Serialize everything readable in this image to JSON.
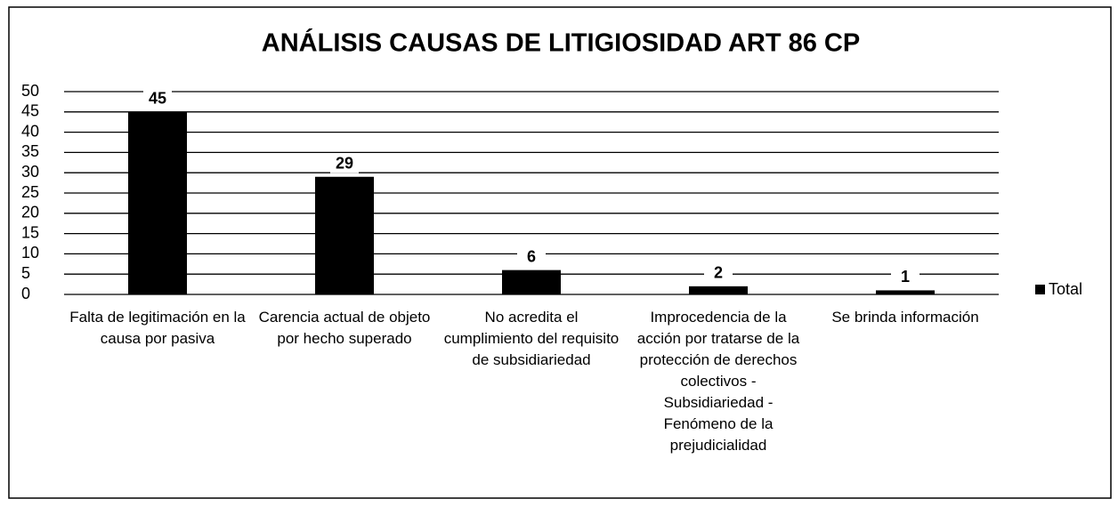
{
  "chart_data": {
    "type": "bar",
    "title": "ANÁLISIS CAUSAS DE LITIGIOSIDAD ART 86 CP",
    "categories": [
      "Falta de legitimación en la causa por pasiva",
      "Carencia actual de objeto por hecho superado",
      "No acredita el cumplimiento del requisito de subsidiariedad",
      "Improcedencia de la acción por tratarse de la protección de derechos colectivos - Subsidiariedad - Fenómeno de la prejudicialidad",
      "Se brinda información"
    ],
    "series": [
      {
        "name": "Total",
        "color": "#000000",
        "values": [
          45,
          29,
          6,
          2,
          1
        ]
      }
    ],
    "ylim": [
      0,
      50
    ],
    "yticks": [
      0,
      5,
      10,
      15,
      20,
      25,
      30,
      35,
      40,
      45,
      50
    ],
    "grid": true,
    "legend": "right"
  }
}
